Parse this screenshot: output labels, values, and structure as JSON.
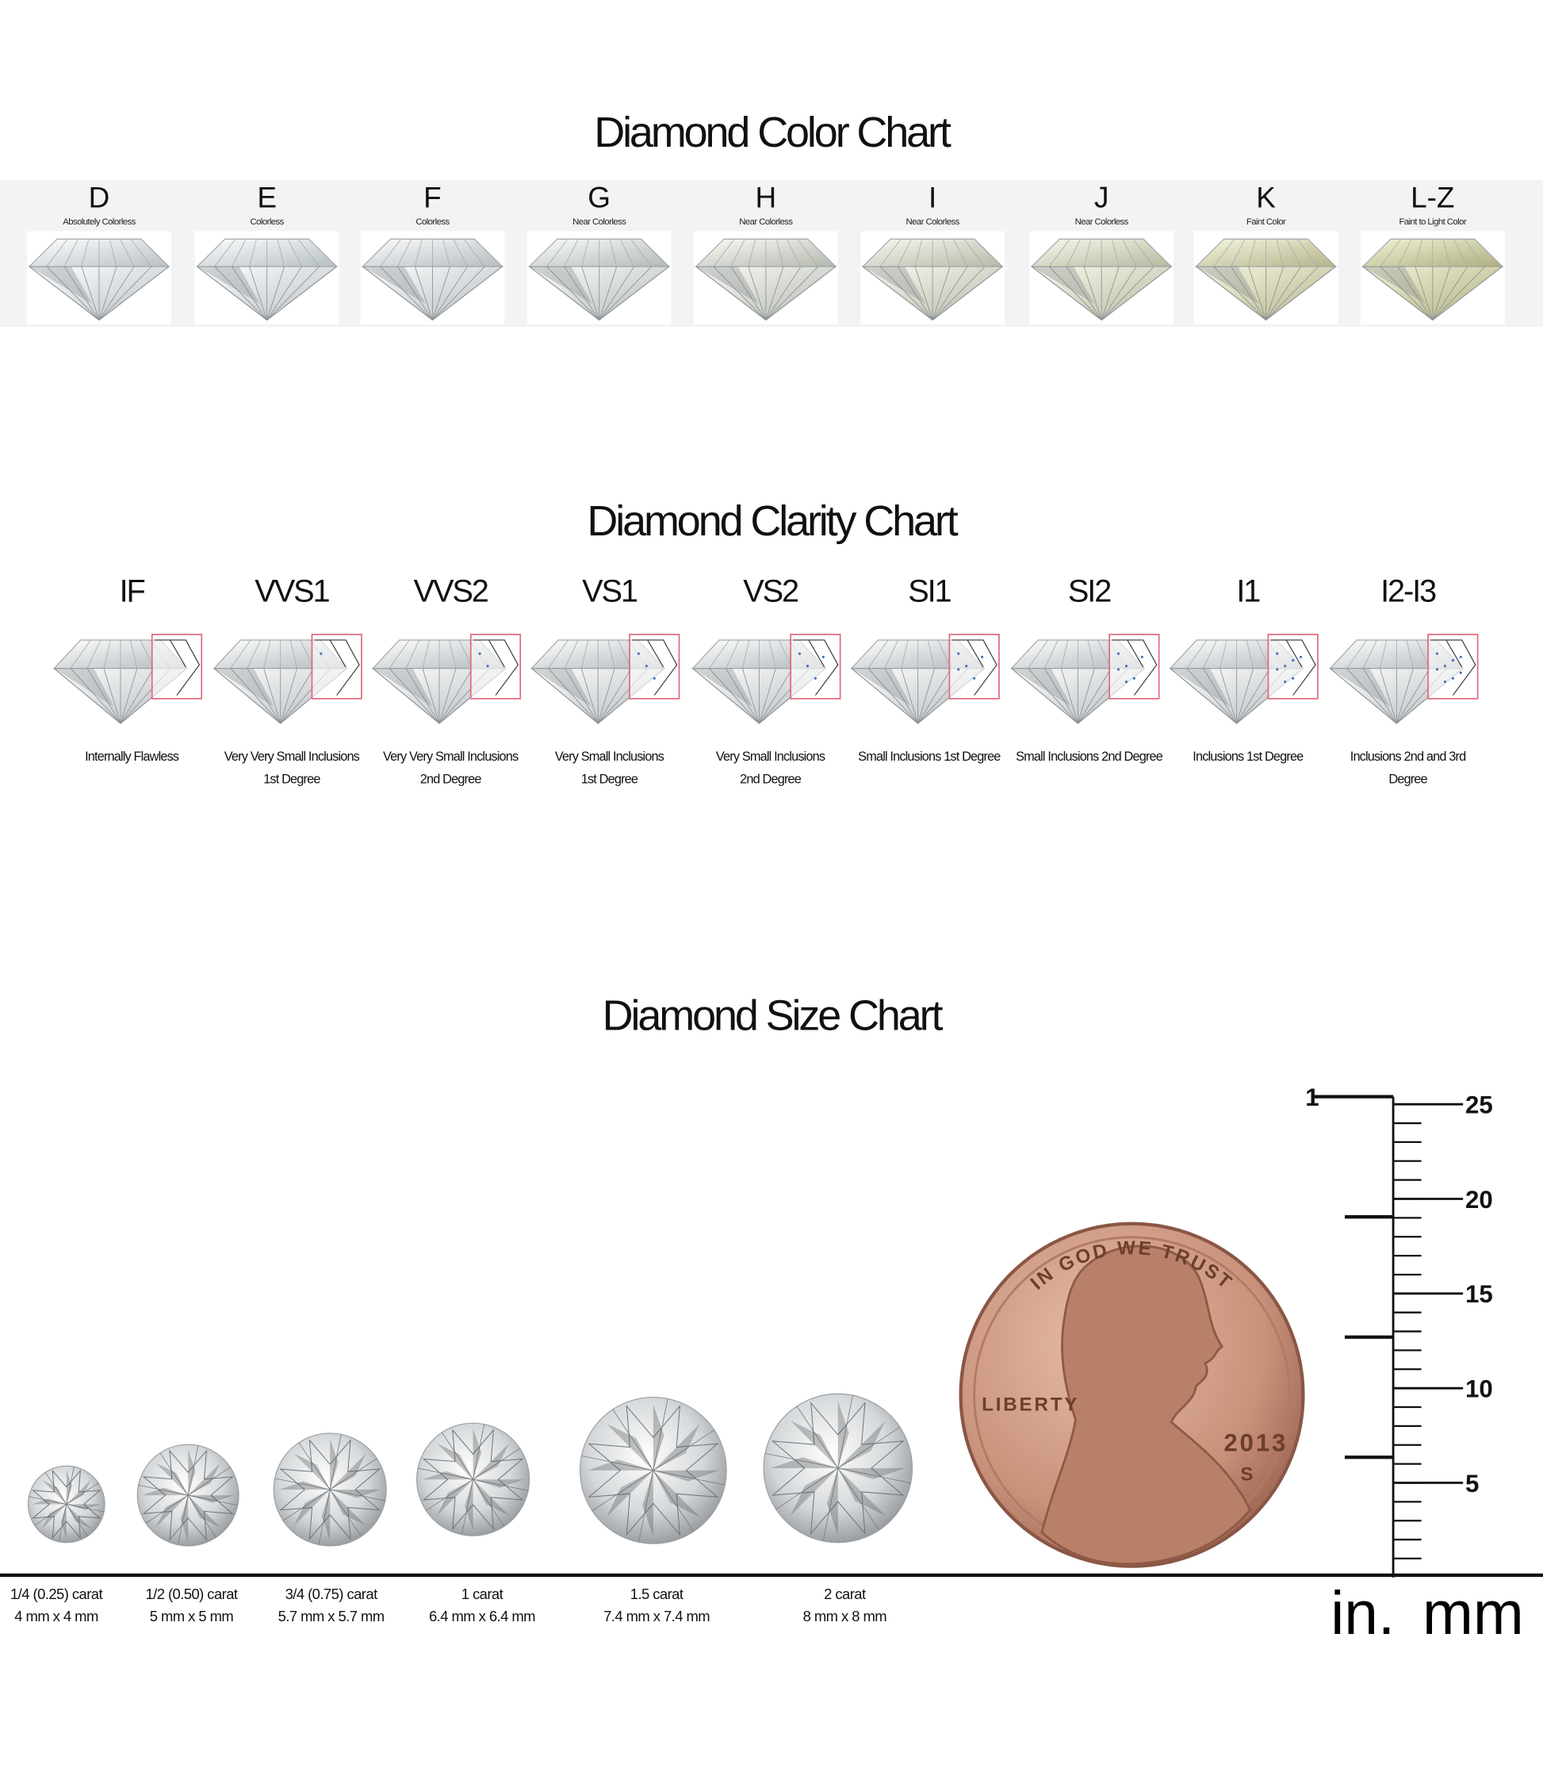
{
  "color_chart": {
    "title": "Diamond Color Chart",
    "grades": [
      {
        "grade": "D",
        "description": "Absolutely Colorless"
      },
      {
        "grade": "E",
        "description": "Colorless"
      },
      {
        "grade": "F",
        "description": "Colorless"
      },
      {
        "grade": "G",
        "description": "Near Colorless"
      },
      {
        "grade": "H",
        "description": "Near Colorless"
      },
      {
        "grade": "I",
        "description": "Near Colorless"
      },
      {
        "grade": "J",
        "description": "Near Colorless"
      },
      {
        "grade": "K",
        "description": "Faint Color"
      },
      {
        "grade": "L-Z",
        "description": "Faint to Light Color"
      }
    ]
  },
  "clarity_chart": {
    "title": "Diamond Clarity Chart",
    "grades": [
      {
        "grade": "IF",
        "description": [
          "Internally Flawless"
        ]
      },
      {
        "grade": "VVS1",
        "description": [
          "Very Very Small Inclusions",
          "1st Degree"
        ]
      },
      {
        "grade": "VVS2",
        "description": [
          "Very Very Small Inclusions",
          "2nd Degree"
        ]
      },
      {
        "grade": "VS1",
        "description": [
          "Very Small Inclusions",
          "1st Degree"
        ]
      },
      {
        "grade": "VS2",
        "description": [
          "Very Small Inclusions",
          "2nd Degree"
        ]
      },
      {
        "grade": "SI1",
        "description": [
          "Small Inclusions 1st Degree"
        ]
      },
      {
        "grade": "SI2",
        "description": [
          "Small Inclusions 2nd Degree"
        ]
      },
      {
        "grade": "I1",
        "description": [
          "Inclusions 1st Degree"
        ]
      },
      {
        "grade": "I2-I3",
        "description": [
          "Inclusions 2nd and 3rd",
          "Degree"
        ]
      }
    ]
  },
  "size_chart": {
    "title": "Diamond Size Chart",
    "sizes": [
      {
        "carat": "1/4 (0.25) carat",
        "dimensions": "4 mm x 4 mm"
      },
      {
        "carat": "1/2 (0.50) carat",
        "dimensions": "5 mm x 5 mm"
      },
      {
        "carat": "3/4 (0.75) carat",
        "dimensions": "5.7 mm x 5.7 mm"
      },
      {
        "carat": "1 carat",
        "dimensions": "6.4 mm x 6.4 mm"
      },
      {
        "carat": "1.5 carat",
        "dimensions": "7.4 mm x 7.4 mm"
      },
      {
        "carat": "2 carat",
        "dimensions": "8 mm x 8 mm"
      }
    ],
    "coin": {
      "motto": "IN GOD WE TRUST",
      "liberty": "LIBERTY",
      "year": "2013",
      "mint": "S"
    },
    "ruler": {
      "inch_labels": [
        1
      ],
      "mm_labels": [
        25,
        20,
        15,
        10,
        5
      ],
      "inch_unit": "in.",
      "mm_unit": "mm"
    }
  }
}
